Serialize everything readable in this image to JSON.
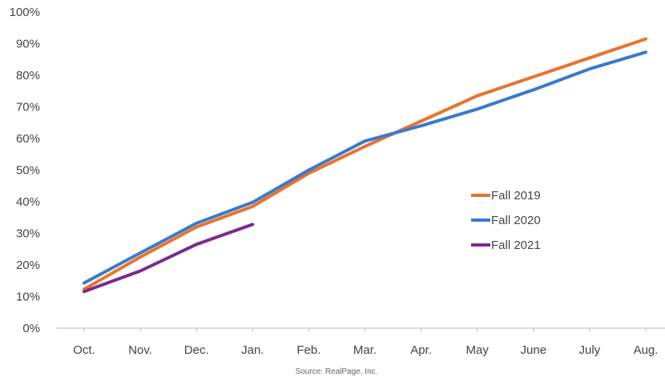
{
  "chart_data": {
    "type": "line",
    "categories": [
      "Oct.",
      "Nov.",
      "Dec.",
      "Jan.",
      "Feb.",
      "Mar.",
      "Apr.",
      "May",
      "June",
      "July",
      "Aug."
    ],
    "series": [
      {
        "name": "Fall 2019",
        "color": "#E8732C",
        "values": [
          12.3,
          22.5,
          32.0,
          38.5,
          49.0,
          57.5,
          65.5,
          73.5,
          79.5,
          85.5,
          91.5
        ]
      },
      {
        "name": "Fall 2020",
        "color": "#3A7ACB",
        "values": [
          14.3,
          23.8,
          33.2,
          39.8,
          50.0,
          59.2,
          64.0,
          69.3,
          75.4,
          82.0,
          87.3
        ]
      },
      {
        "name": "Fall 2021",
        "color": "#7B2A8E",
        "values": [
          11.6,
          18.1,
          26.5,
          32.8,
          null,
          null,
          null,
          null,
          null,
          null,
          null
        ]
      }
    ],
    "ylim": [
      0,
      100
    ],
    "y_ticks": [
      "0%",
      "10%",
      "20%",
      "30%",
      "40%",
      "50%",
      "60%",
      "70%",
      "80%",
      "90%",
      "100%"
    ],
    "grid": false,
    "legend_position": "right"
  },
  "source_note": "Source: RealPage, Inc."
}
